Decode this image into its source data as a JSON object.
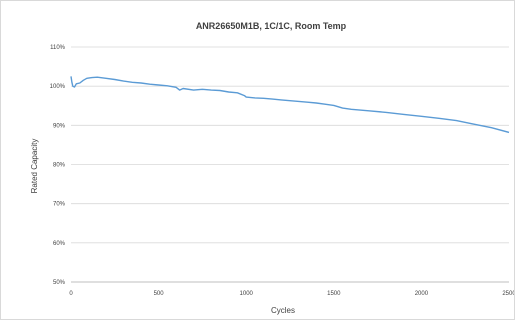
{
  "chart_data": {
    "type": "line",
    "title": "ANR26650M1B, 1C/1C, Room Temp",
    "xlabel": "Cycles",
    "ylabel": "Rated Capacity",
    "xlim": [
      0,
      2500
    ],
    "ylim": [
      50,
      110
    ],
    "x_ticks": [
      "0",
      "500",
      "1000",
      "1500",
      "2000",
      "2500"
    ],
    "y_ticks": [
      "50%",
      "60%",
      "70%",
      "80%",
      "90%",
      "100%",
      "110%"
    ],
    "grid": "horizontal",
    "color": "#5b9bd5",
    "series": [
      {
        "x": [
          0,
          5,
          10,
          20,
          30,
          50,
          70,
          90,
          120,
          150,
          200,
          250,
          300,
          350,
          400,
          450,
          500,
          550,
          600,
          620,
          640,
          700,
          750,
          800,
          850,
          900,
          950,
          990,
          1000,
          1050,
          1100,
          1150,
          1200,
          1250,
          1300,
          1350,
          1400,
          1450,
          1500,
          1550,
          1600,
          1700,
          1800,
          1900,
          2000,
          2100,
          2200,
          2300,
          2400,
          2500
        ],
        "values": [
          102.5,
          101.0,
          100.0,
          99.8,
          100.6,
          100.8,
          101.5,
          102.0,
          102.2,
          102.3,
          102.0,
          101.7,
          101.3,
          101.0,
          100.8,
          100.5,
          100.3,
          100.1,
          99.7,
          99.0,
          99.4,
          99.0,
          99.2,
          99.0,
          98.9,
          98.5,
          98.3,
          97.6,
          97.2,
          97.0,
          96.9,
          96.7,
          96.5,
          96.3,
          96.1,
          95.9,
          95.7,
          95.4,
          95.1,
          94.4,
          94.1,
          93.7,
          93.3,
          92.8,
          92.3,
          91.8,
          91.2,
          90.3,
          89.4,
          88.2
        ]
      }
    ]
  }
}
